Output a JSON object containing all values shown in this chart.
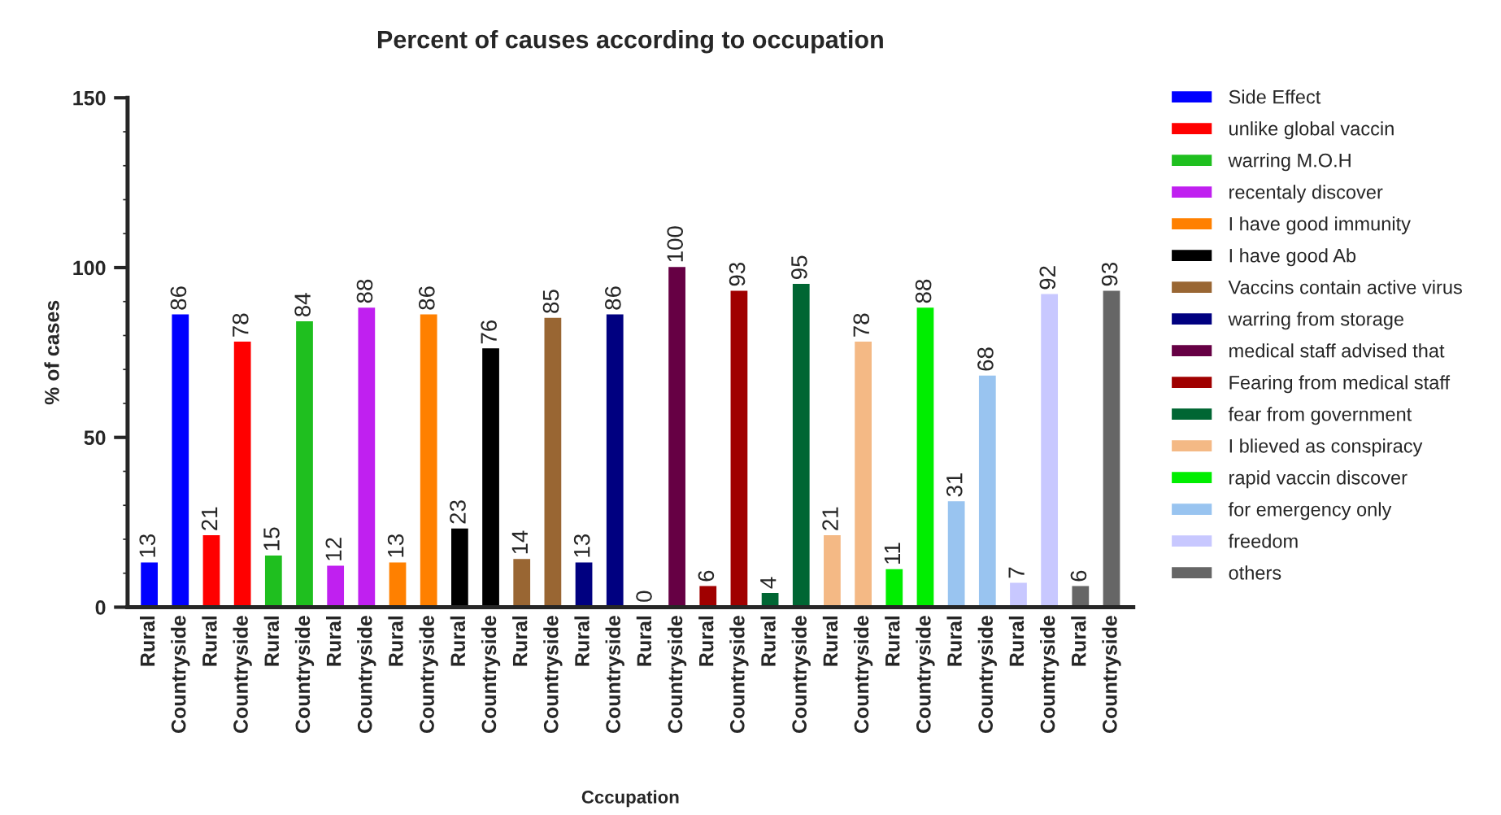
{
  "chart_data": {
    "type": "bar",
    "title": "Percent of causes according to occupation",
    "xlabel": "Cccupation",
    "ylabel": "% of cases",
    "categories": [
      "Rural",
      "Countryside",
      "Rural",
      "Countryside",
      "Rural",
      "Countryside",
      "Rural",
      "Countryside",
      "Rural",
      "Countryside",
      "Rural",
      "Countryside",
      "Rural",
      "Countryside",
      "Rural",
      "Countryside",
      "Rural",
      "Countryside",
      "Rural",
      "Countryside",
      "Rural",
      "Countryside",
      "Rural",
      "Countryside",
      "Rural",
      "Countryside",
      "Rural",
      "Countryside",
      "Rural",
      "Countryside",
      "Rural",
      "Countryside"
    ],
    "series": [
      {
        "name": "Side Effect",
        "color": "#0000ff",
        "values": [
          13,
          86,
          null,
          null,
          null,
          null,
          null,
          null,
          null,
          null,
          null,
          null,
          null,
          null,
          null,
          null,
          null,
          null,
          null,
          null,
          null,
          null,
          null,
          null,
          null,
          null,
          null,
          null,
          null,
          null,
          null,
          null
        ]
      },
      {
        "name": "unlike global vaccin",
        "color": "#ff0000",
        "values": [
          null,
          null,
          21,
          78,
          null,
          null,
          null,
          null,
          null,
          null,
          null,
          null,
          null,
          null,
          null,
          null,
          null,
          null,
          null,
          null,
          null,
          null,
          null,
          null,
          null,
          null,
          null,
          null,
          null,
          null,
          null,
          null
        ]
      },
      {
        "name": "warring M.O.H",
        "color": "#1fbf1f",
        "values": [
          null,
          null,
          null,
          null,
          15,
          84,
          null,
          null,
          null,
          null,
          null,
          null,
          null,
          null,
          null,
          null,
          null,
          null,
          null,
          null,
          null,
          null,
          null,
          null,
          null,
          null,
          null,
          null,
          null,
          null,
          null,
          null
        ]
      },
      {
        "name": "recentaly discover",
        "color": "#c020f0",
        "values": [
          null,
          null,
          null,
          null,
          null,
          null,
          12,
          88,
          null,
          null,
          null,
          null,
          null,
          null,
          null,
          null,
          null,
          null,
          null,
          null,
          null,
          null,
          null,
          null,
          null,
          null,
          null,
          null,
          null,
          null,
          null,
          null
        ]
      },
      {
        "name": "I have good immunity",
        "color": "#ff8000",
        "values": [
          null,
          null,
          null,
          null,
          null,
          null,
          null,
          null,
          13,
          86,
          null,
          null,
          null,
          null,
          null,
          null,
          null,
          null,
          null,
          null,
          null,
          null,
          null,
          null,
          null,
          null,
          null,
          null,
          null,
          null,
          null,
          null
        ]
      },
      {
        "name": "I have good Ab",
        "color": "#000000",
        "values": [
          null,
          null,
          null,
          null,
          null,
          null,
          null,
          null,
          null,
          null,
          23,
          76,
          null,
          null,
          null,
          null,
          null,
          null,
          null,
          null,
          null,
          null,
          null,
          null,
          null,
          null,
          null,
          null,
          null,
          null,
          null,
          null
        ]
      },
      {
        "name": "Vaccins contain active virus",
        "color": "#996633",
        "values": [
          null,
          null,
          null,
          null,
          null,
          null,
          null,
          null,
          null,
          null,
          null,
          null,
          14,
          85,
          null,
          null,
          null,
          null,
          null,
          null,
          null,
          null,
          null,
          null,
          null,
          null,
          null,
          null,
          null,
          null,
          null,
          null
        ]
      },
      {
        "name": "warring from storage",
        "color": "#000080",
        "values": [
          null,
          null,
          null,
          null,
          null,
          null,
          null,
          null,
          null,
          null,
          null,
          null,
          null,
          null,
          13,
          86,
          null,
          null,
          null,
          null,
          null,
          null,
          null,
          null,
          null,
          null,
          null,
          null,
          null,
          null,
          null,
          null
        ]
      },
      {
        "name": "medical staff advised that",
        "color": "#660044",
        "values": [
          null,
          null,
          null,
          null,
          null,
          null,
          null,
          null,
          null,
          null,
          null,
          null,
          null,
          null,
          null,
          null,
          0,
          100,
          null,
          null,
          null,
          null,
          null,
          null,
          null,
          null,
          null,
          null,
          null,
          null,
          null,
          null
        ]
      },
      {
        "name": "Fearing from medical staff",
        "color": "#a00000",
        "values": [
          null,
          null,
          null,
          null,
          null,
          null,
          null,
          null,
          null,
          null,
          null,
          null,
          null,
          null,
          null,
          null,
          null,
          null,
          6,
          93,
          null,
          null,
          null,
          null,
          null,
          null,
          null,
          null,
          null,
          null,
          null,
          null
        ]
      },
      {
        "name": "fear from government",
        "color": "#006633",
        "values": [
          null,
          null,
          null,
          null,
          null,
          null,
          null,
          null,
          null,
          null,
          null,
          null,
          null,
          null,
          null,
          null,
          null,
          null,
          null,
          null,
          4,
          95,
          null,
          null,
          null,
          null,
          null,
          null,
          null,
          null,
          null,
          null
        ]
      },
      {
        "name": "I blieved as conspiracy",
        "color": "#f4b985",
        "values": [
          null,
          null,
          null,
          null,
          null,
          null,
          null,
          null,
          null,
          null,
          null,
          null,
          null,
          null,
          null,
          null,
          null,
          null,
          null,
          null,
          null,
          null,
          21,
          78,
          null,
          null,
          null,
          null,
          null,
          null,
          null,
          null
        ]
      },
      {
        "name": "rapid vaccin discover",
        "color": "#00ee00",
        "values": [
          null,
          null,
          null,
          null,
          null,
          null,
          null,
          null,
          null,
          null,
          null,
          null,
          null,
          null,
          null,
          null,
          null,
          null,
          null,
          null,
          null,
          null,
          null,
          null,
          11,
          88,
          null,
          null,
          null,
          null,
          null,
          null
        ]
      },
      {
        "name": "for emergency only",
        "color": "#99c4f0",
        "values": [
          null,
          null,
          null,
          null,
          null,
          null,
          null,
          null,
          null,
          null,
          null,
          null,
          null,
          null,
          null,
          null,
          null,
          null,
          null,
          null,
          null,
          null,
          null,
          null,
          null,
          null,
          31,
          68,
          null,
          null,
          null,
          null
        ]
      },
      {
        "name": "freedom",
        "color": "#c8c8ff",
        "values": [
          null,
          null,
          null,
          null,
          null,
          null,
          null,
          null,
          null,
          null,
          null,
          null,
          null,
          null,
          null,
          null,
          null,
          null,
          null,
          null,
          null,
          null,
          null,
          null,
          null,
          null,
          null,
          null,
          7,
          92,
          null,
          null
        ]
      },
      {
        "name": "others",
        "color": "#666666",
        "values": [
          null,
          null,
          null,
          null,
          null,
          null,
          null,
          null,
          null,
          null,
          null,
          null,
          null,
          null,
          null,
          null,
          null,
          null,
          null,
          null,
          null,
          null,
          null,
          null,
          null,
          null,
          null,
          null,
          null,
          null,
          6,
          93
        ]
      }
    ],
    "ylim": [
      0,
      150
    ],
    "yticks": [
      0,
      50,
      100,
      150
    ],
    "data_labels": true,
    "legend": "right",
    "grid": false
  }
}
